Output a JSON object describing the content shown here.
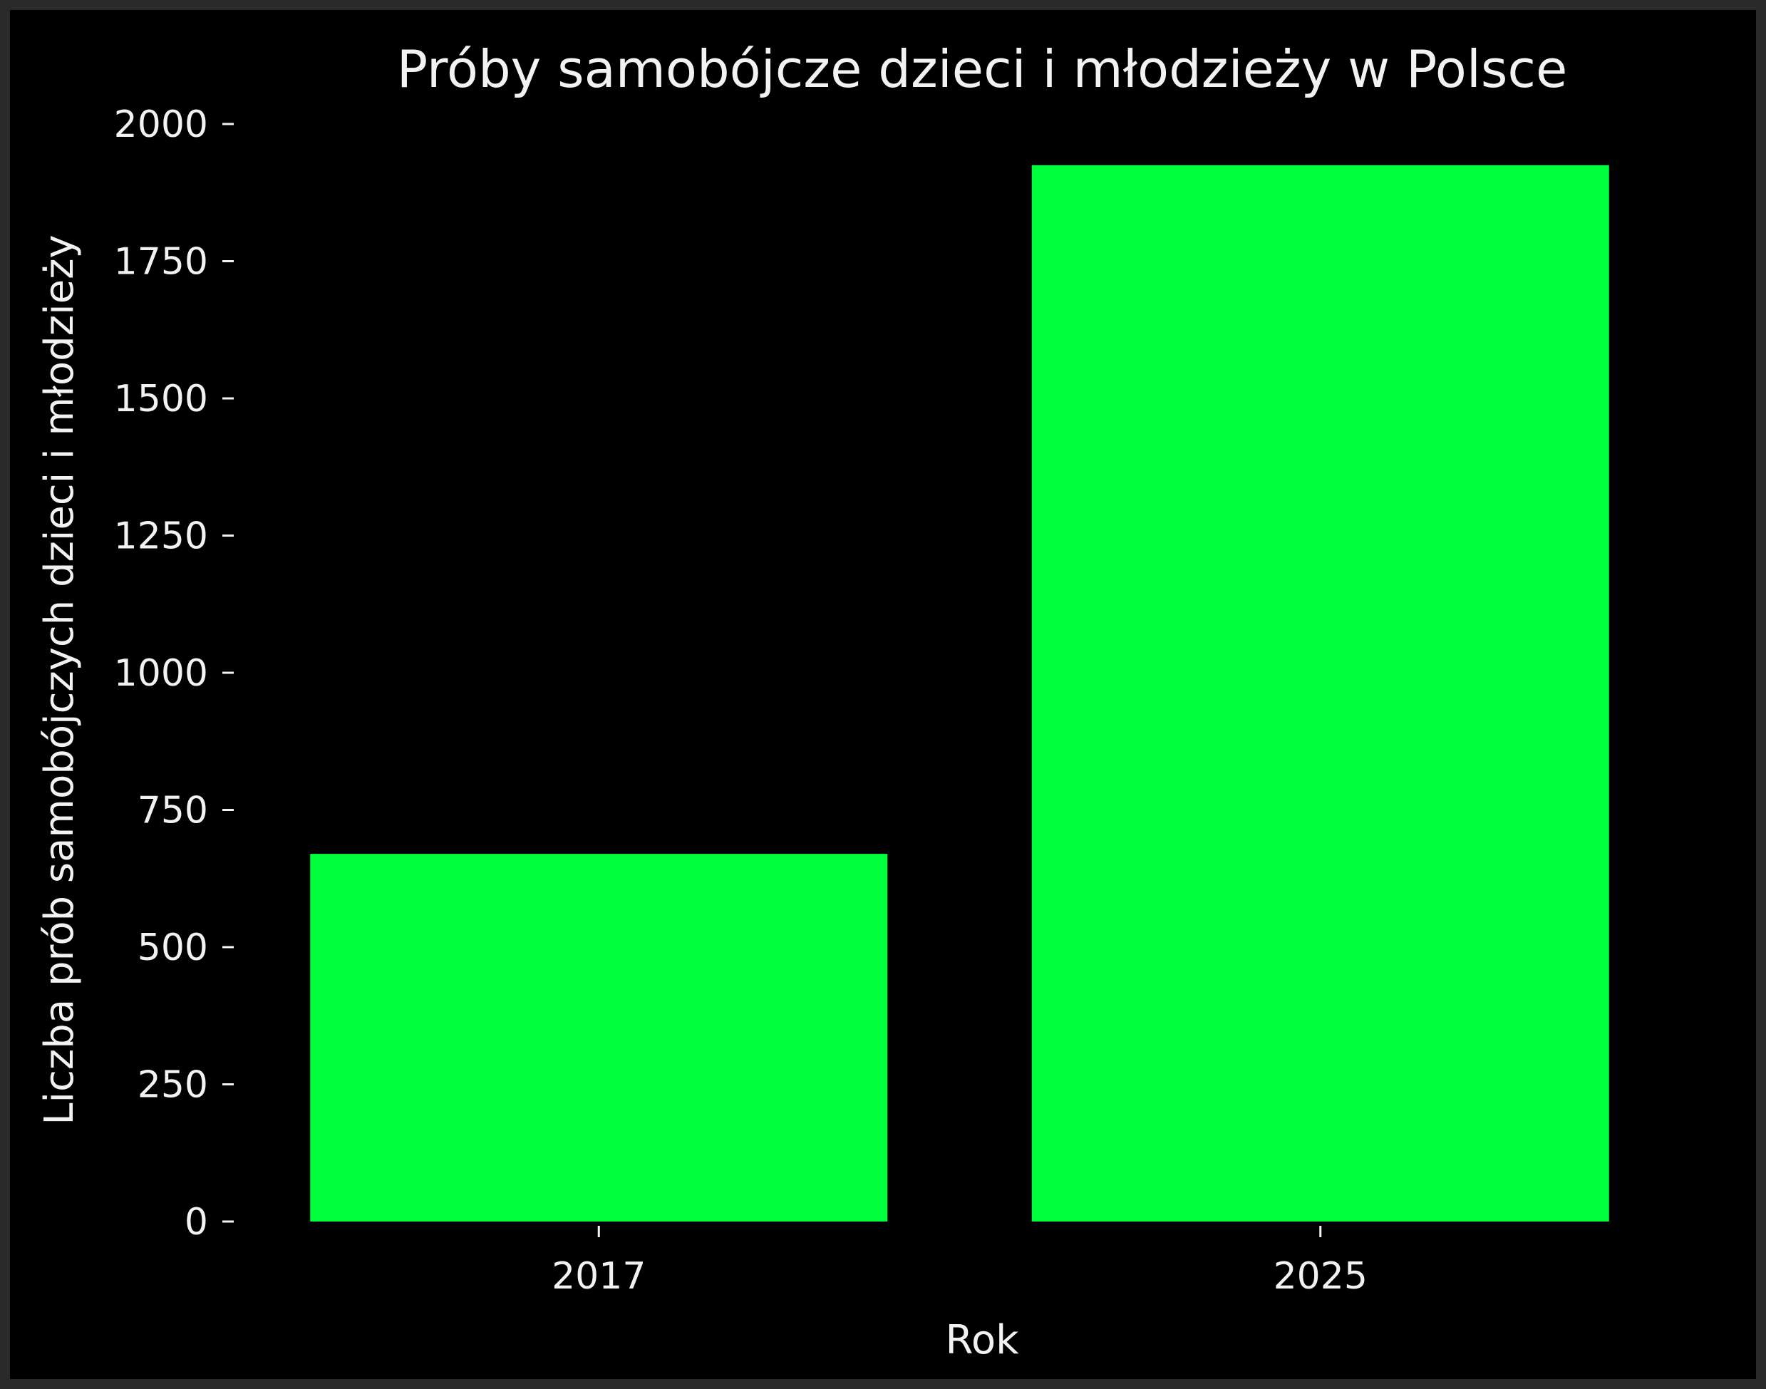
{
  "colors": {
    "background": "#000000",
    "bar": "#00ff3c",
    "text": "#f2f2f2"
  },
  "chart_data": {
    "type": "bar",
    "title": "Próby samobójcze dzieci i młodzieży w Polsce",
    "xlabel": "Rok",
    "ylabel": "Liczba prób samobójczych dzieci i młodzieży",
    "categories": [
      "2017",
      "2025"
    ],
    "values": [
      670,
      1925
    ],
    "ylim": [
      0,
      2000
    ],
    "yticks": [
      0,
      250,
      500,
      750,
      1000,
      1250,
      1500,
      1750,
      2000
    ],
    "ytick_labels": [
      "0",
      "250",
      "500",
      "750",
      "1000",
      "1250",
      "1500",
      "1750",
      "2000"
    ],
    "grid": false,
    "legend": "none"
  }
}
